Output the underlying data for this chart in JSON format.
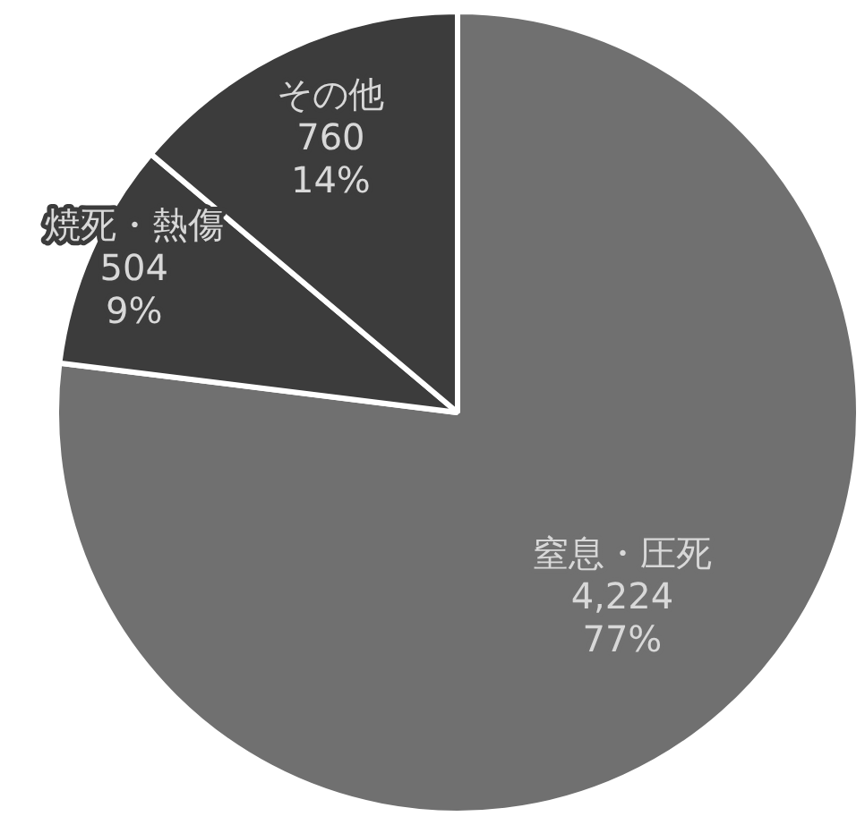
{
  "chart_data": {
    "type": "pie",
    "categories": [
      "窒息・圧死",
      "焼死・熱傷",
      "その他"
    ],
    "values": [
      4224,
      504,
      760
    ],
    "colors": [
      "#707070",
      "#3c3c3c",
      "#3c3c3c"
    ],
    "value_labels": [
      "4,224\n77%",
      "504\n9%",
      "760\n14%"
    ],
    "legend": false
  }
}
